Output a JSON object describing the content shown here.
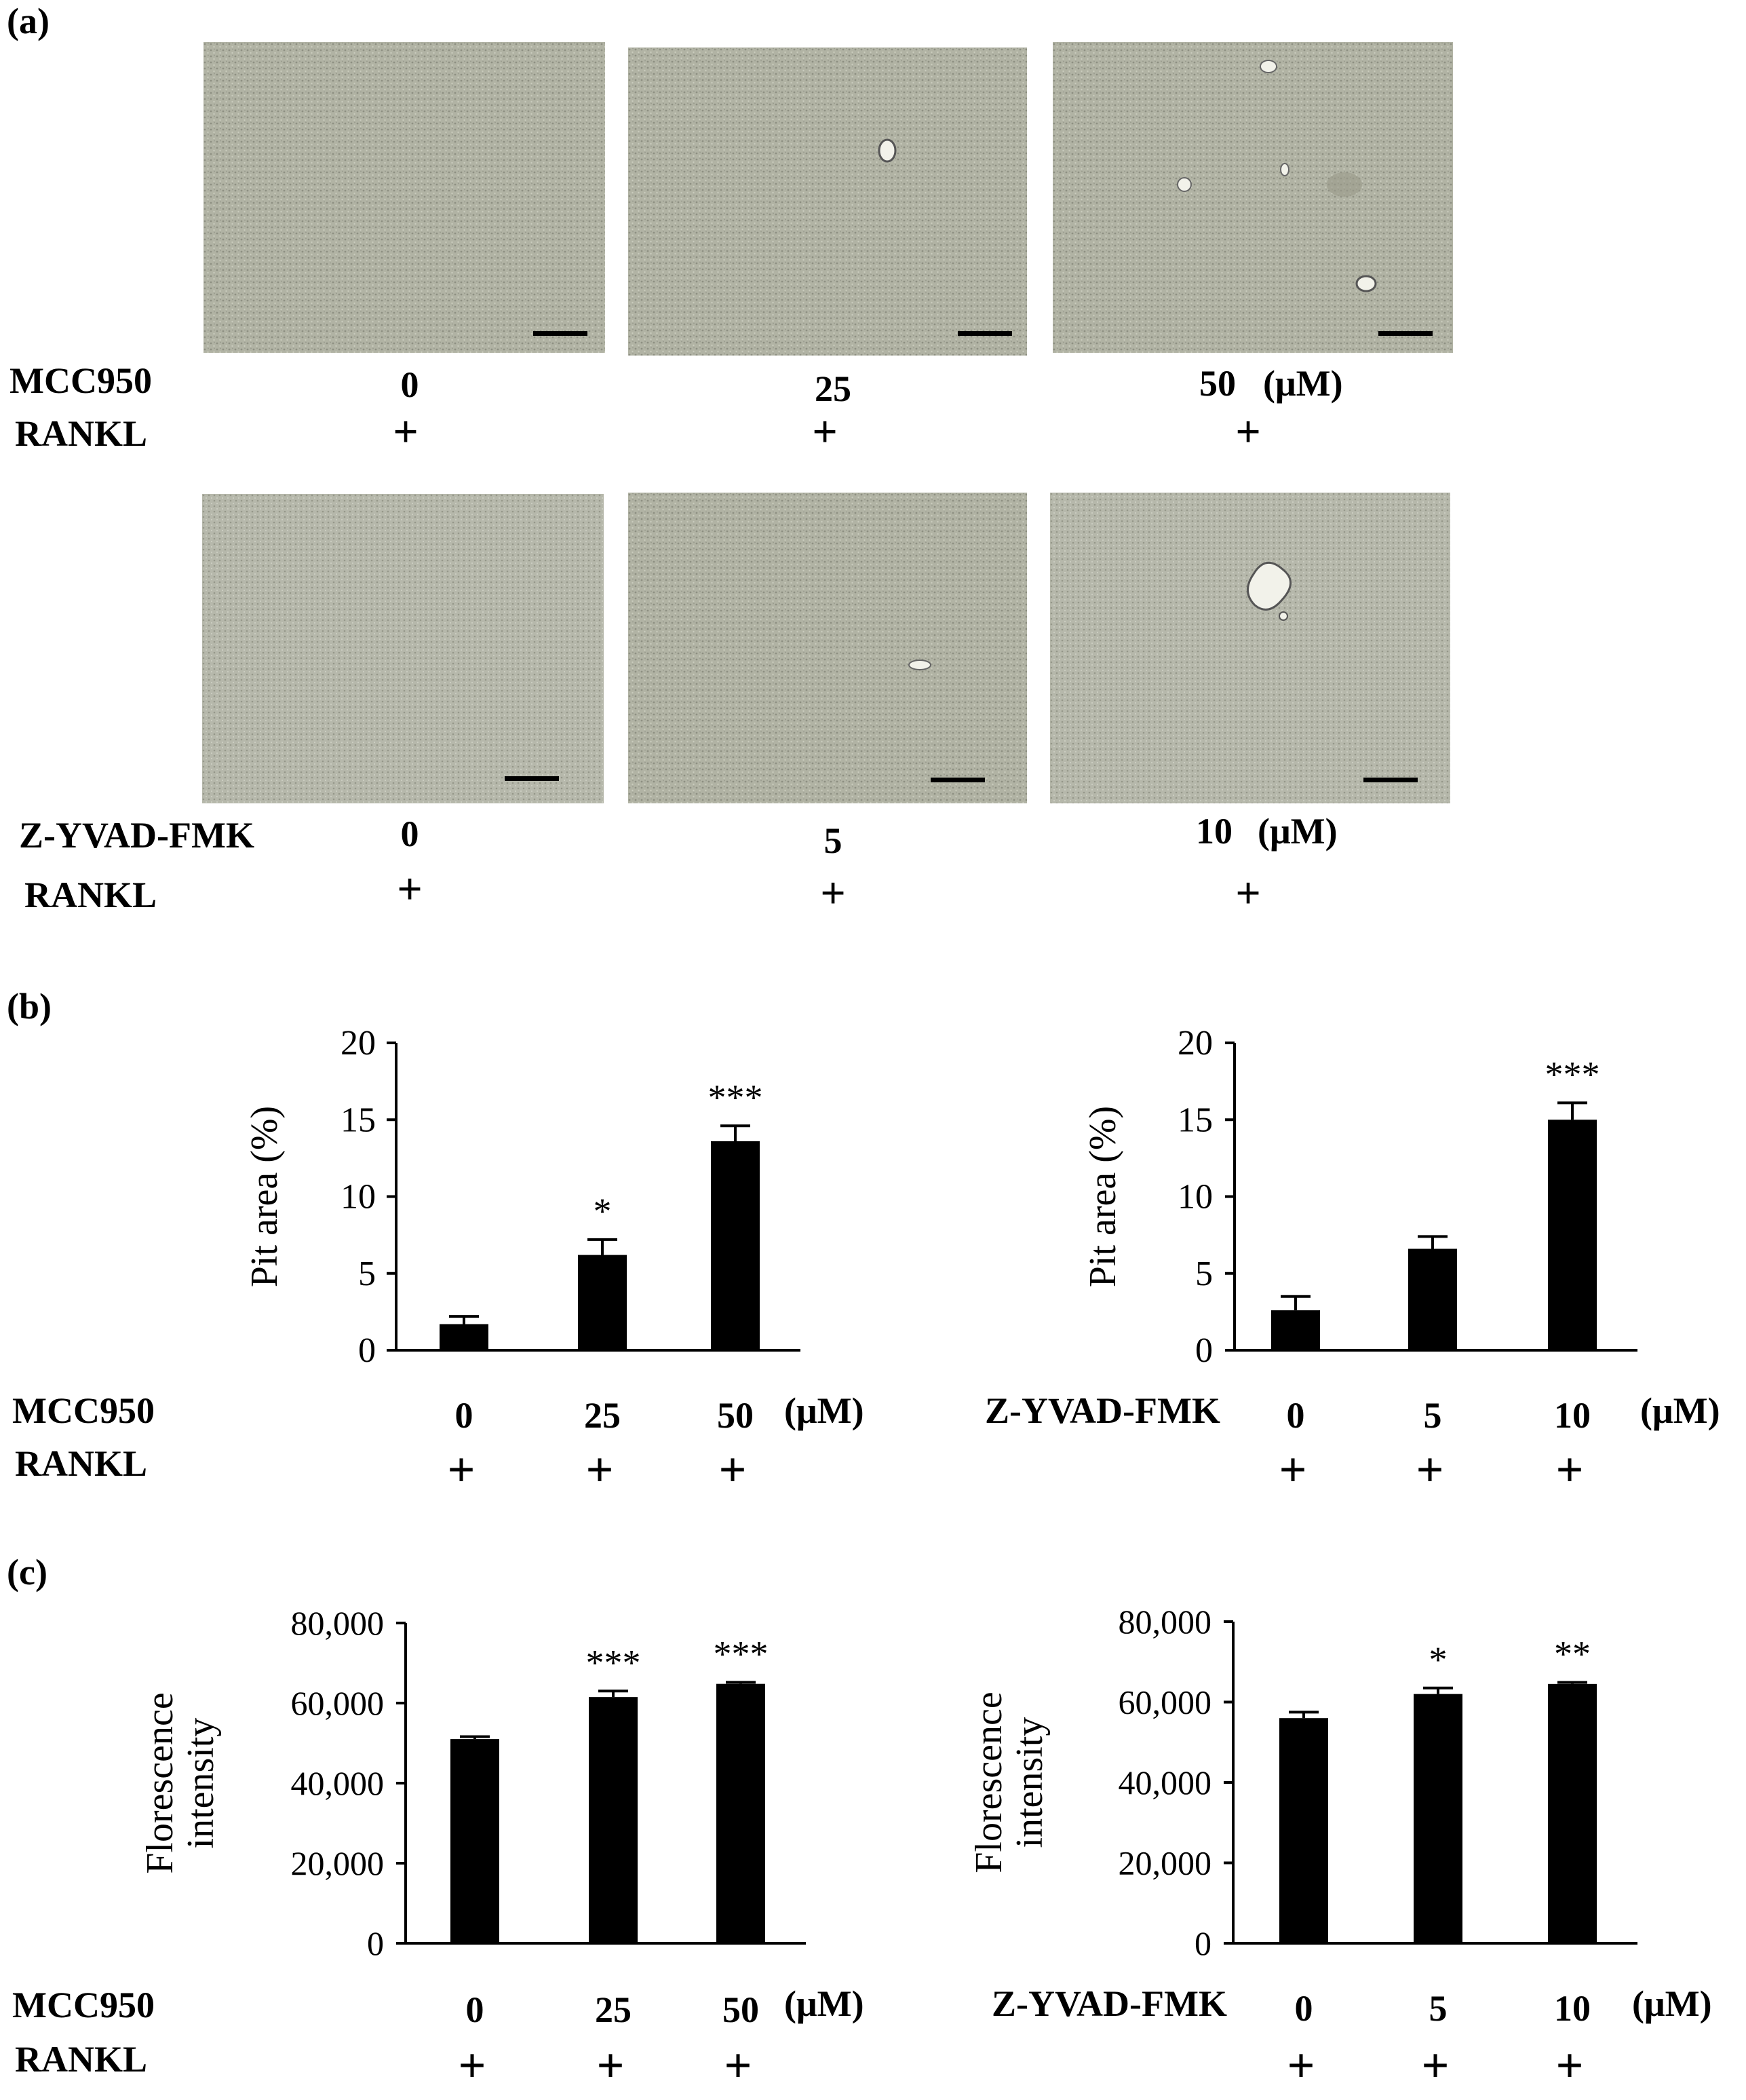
{
  "panels": {
    "a": "(a)",
    "b": "(b)",
    "c": "(c)"
  },
  "section_a": {
    "row1": {
      "drug": "MCC950",
      "rankl": "RANKL",
      "doses": [
        "0",
        "25",
        "50"
      ],
      "unit": "(μM)",
      "plus": [
        "+",
        "+",
        "+"
      ]
    },
    "row2": {
      "drug": "Z-YVAD-FMK",
      "rankl": "RANKL",
      "doses": [
        "0",
        "5",
        "10"
      ],
      "unit": "(μM)",
      "plus": [
        "+",
        "+",
        "+"
      ]
    }
  },
  "axis_labels": {
    "b": {
      "drug_left": "MCC950",
      "drug_right": "Z-YVAD-FMK",
      "rankl": "RANKL",
      "unit": "(μM)"
    },
    "c": {
      "drug_left": "MCC950",
      "drug_right": "Z-YVAD-FMK",
      "rankl": "RANKL",
      "unit": "(μM)"
    }
  },
  "chart_data": [
    {
      "type": "bar",
      "panel": "b-left",
      "categories": [
        "0",
        "25",
        "50"
      ],
      "values": [
        1.7,
        6.2,
        13.6
      ],
      "errors": [
        0.5,
        1.0,
        1.0
      ],
      "significance": [
        "",
        "*",
        "***"
      ],
      "ylabel": "Pit area (%)",
      "ylim": [
        0,
        20
      ],
      "yticks": [
        "0",
        "5",
        "10",
        "15",
        "20"
      ],
      "ytick_values": [
        0,
        5,
        10,
        15,
        20
      ],
      "rankl": [
        "+",
        "+",
        "+"
      ]
    },
    {
      "type": "bar",
      "panel": "b-right",
      "categories": [
        "0",
        "5",
        "10"
      ],
      "values": [
        2.6,
        6.6,
        15.0
      ],
      "errors": [
        0.9,
        0.8,
        1.1
      ],
      "significance": [
        "",
        "",
        "***"
      ],
      "ylabel": "Pit area (%)",
      "ylim": [
        0,
        20
      ],
      "yticks": [
        "0",
        "5",
        "10",
        "15",
        "20"
      ],
      "ytick_values": [
        0,
        5,
        10,
        15,
        20
      ],
      "rankl": [
        "+",
        "+",
        "+"
      ]
    },
    {
      "type": "bar",
      "panel": "c-left",
      "categories": [
        "0",
        "25",
        "50"
      ],
      "values": [
        51000,
        61500,
        64800
      ],
      "errors": [
        600,
        1500,
        400
      ],
      "significance": [
        "",
        "***",
        "***"
      ],
      "ylabel": "Florescence intensity",
      "ylim": [
        0,
        80000
      ],
      "yticks": [
        "0",
        "20,000",
        "40,000",
        "60,000",
        "80,000"
      ],
      "ytick_values": [
        0,
        20000,
        40000,
        60000,
        80000
      ],
      "rankl": [
        "+",
        "+",
        "+"
      ]
    },
    {
      "type": "bar",
      "panel": "c-right",
      "categories": [
        "0",
        "5",
        "10"
      ],
      "values": [
        56000,
        62000,
        64500
      ],
      "errors": [
        1500,
        1500,
        400
      ],
      "significance": [
        "",
        "*",
        "**"
      ],
      "ylabel": "Florescence intensity",
      "ylim": [
        0,
        80000
      ],
      "yticks": [
        "0",
        "20,000",
        "40,000",
        "60,000",
        "80,000"
      ],
      "ytick_values": [
        0,
        20000,
        40000,
        60000,
        80000
      ],
      "rankl": [
        "+",
        "+",
        "+"
      ]
    }
  ]
}
